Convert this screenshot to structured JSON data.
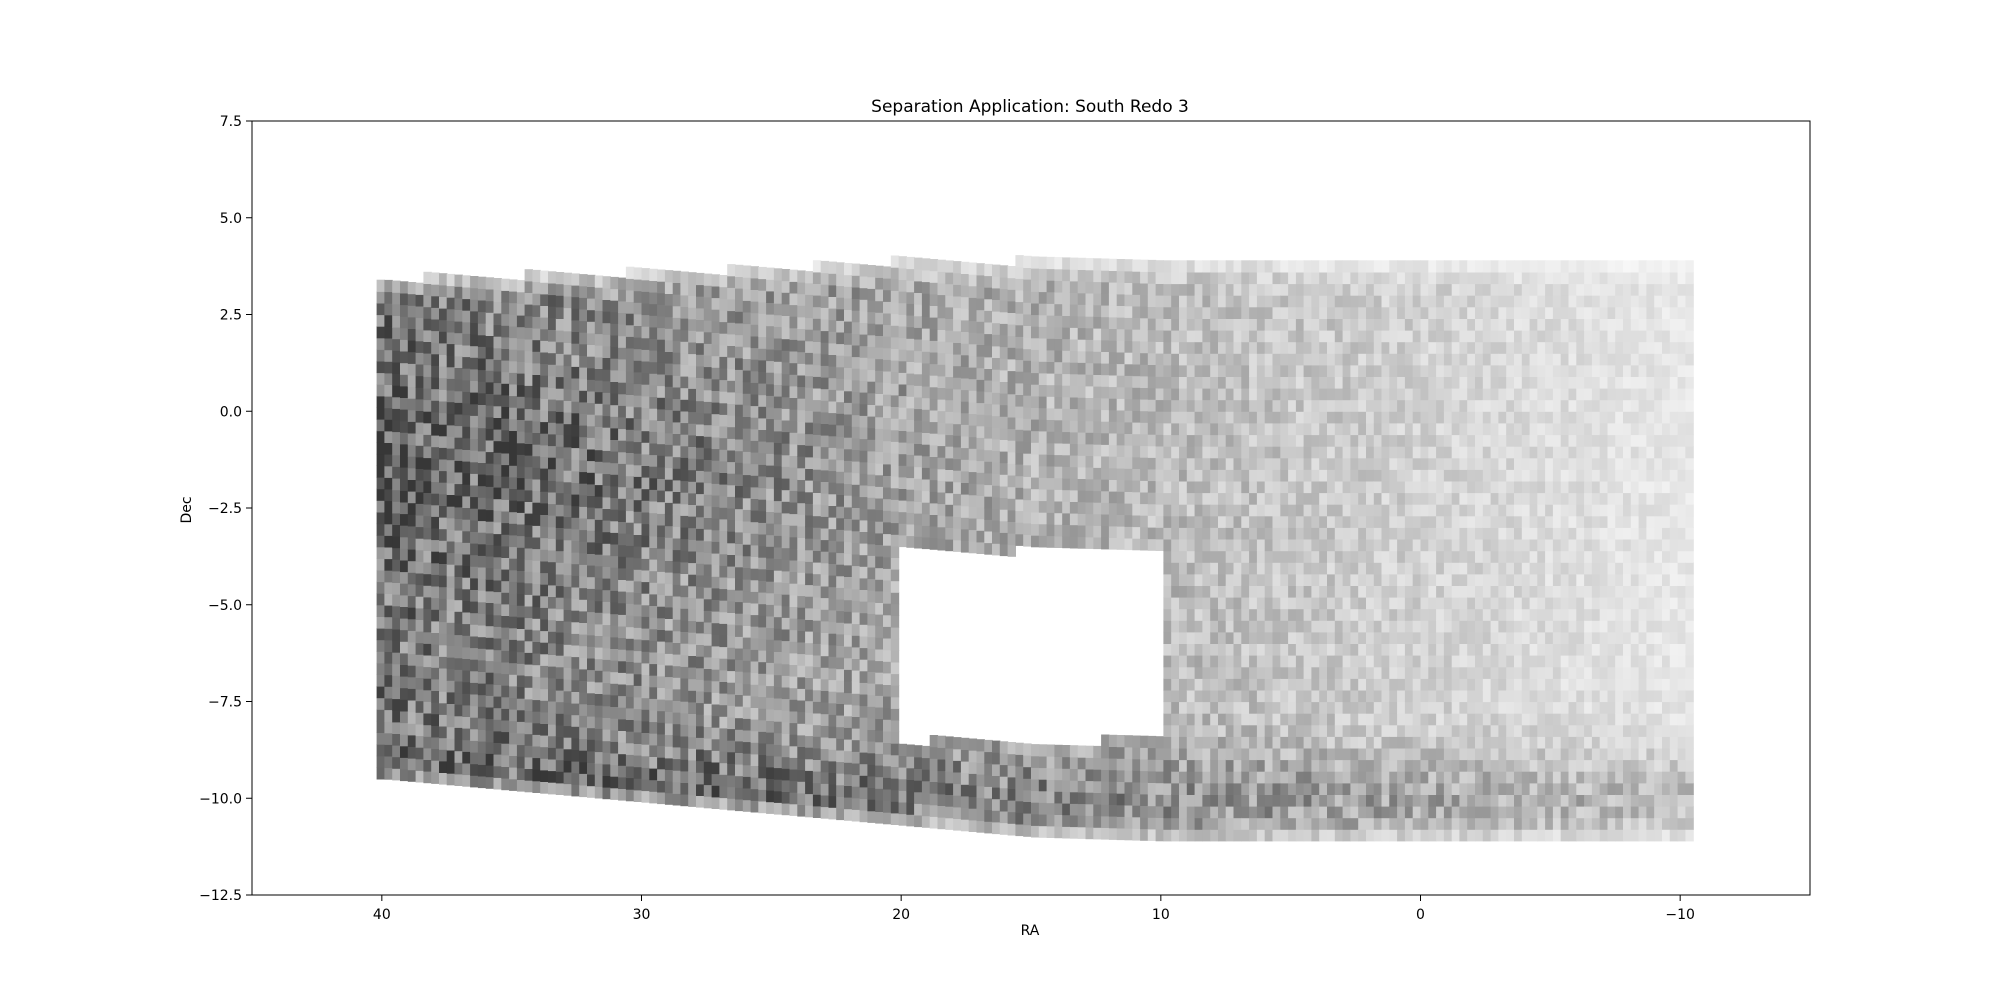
{
  "chart_data": {
    "type": "heatmap",
    "title": "Separation Application: South Redo 3",
    "xlabel": "RA",
    "ylabel": "Dec",
    "xlim": [
      45,
      -15
    ],
    "ylim": [
      -12.5,
      7.5
    ],
    "x_inverted": true,
    "xticks": [
      40,
      30,
      20,
      10,
      0,
      -10
    ],
    "xtick_labels": [
      "40",
      "30",
      "20",
      "10",
      "0",
      "−10"
    ],
    "yticks": [
      7.5,
      5.0,
      2.5,
      0.0,
      -2.5,
      -5.0,
      -7.5,
      -10.0,
      -12.5
    ],
    "ytick_labels": [
      "7.5",
      "5.0",
      "2.5",
      "0.0",
      "−2.5",
      "−5.0",
      "−7.5",
      "−10.0",
      "−12.5"
    ],
    "colormap": "gray_r",
    "grid": false,
    "coverage": {
      "ra_range": [
        40.2,
        -10.2
      ],
      "dec_top": {
        "at_ra_40": 3.3,
        "at_ra_25": 3.55,
        "at_ra_20_and_below": 3.75
      },
      "dec_bottom": {
        "at_ra_40": -9.5,
        "at_ra_25": -10.4,
        "at_ra_15": -11.0,
        "at_ra_10_and_below": -11.1
      }
    },
    "masked_region": {
      "ra": [
        20,
        10
      ],
      "dec": [
        -8.5,
        -3.6
      ]
    },
    "density_notes": "Counts highest near RA 35-40, Dec 0 to -3 and along Dec -9 to -11; lowest at RA < 0, Dec 0 to 3.5"
  }
}
